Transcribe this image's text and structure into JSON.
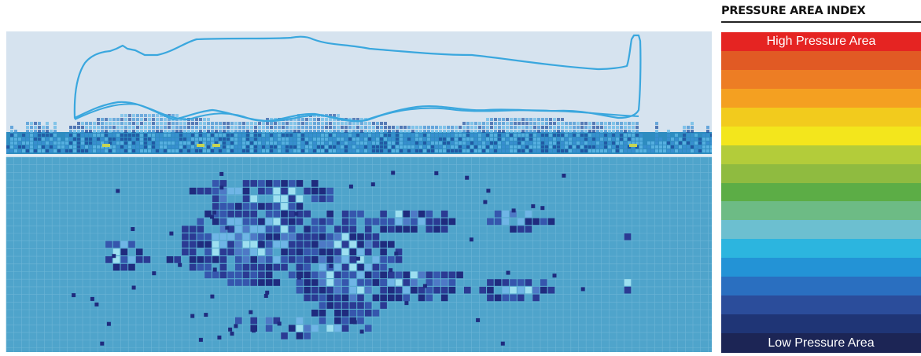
{
  "legend": {
    "title": "PRESSURE AREA INDEX",
    "high_label": "High Pressure Area",
    "low_label": "Low Pressure Area",
    "colors": [
      "#e52422",
      "#e15a24",
      "#ed7d24",
      "#f4a021",
      "#f2cb1d",
      "#f3e61c",
      "#b3cc3a",
      "#8fbb40",
      "#5cad46",
      "#6dbb85",
      "#6cbfd0",
      "#2cb5df",
      "#2393d6",
      "#2a6fc0",
      "#2b4d9b",
      "#1f3576",
      "#1c2555"
    ]
  },
  "figure": {
    "background_colors": {
      "profile": "#d6e3ef",
      "mattress": "#2e8cc0",
      "map": "#4fa4cb"
    },
    "contour_color": "#3aa7de",
    "pressure_colors": [
      "#1f2b7e",
      "#2b3a93",
      "#3656ad",
      "#4e79c6",
      "#6fb5e6",
      "#9ddff0"
    ]
  }
}
